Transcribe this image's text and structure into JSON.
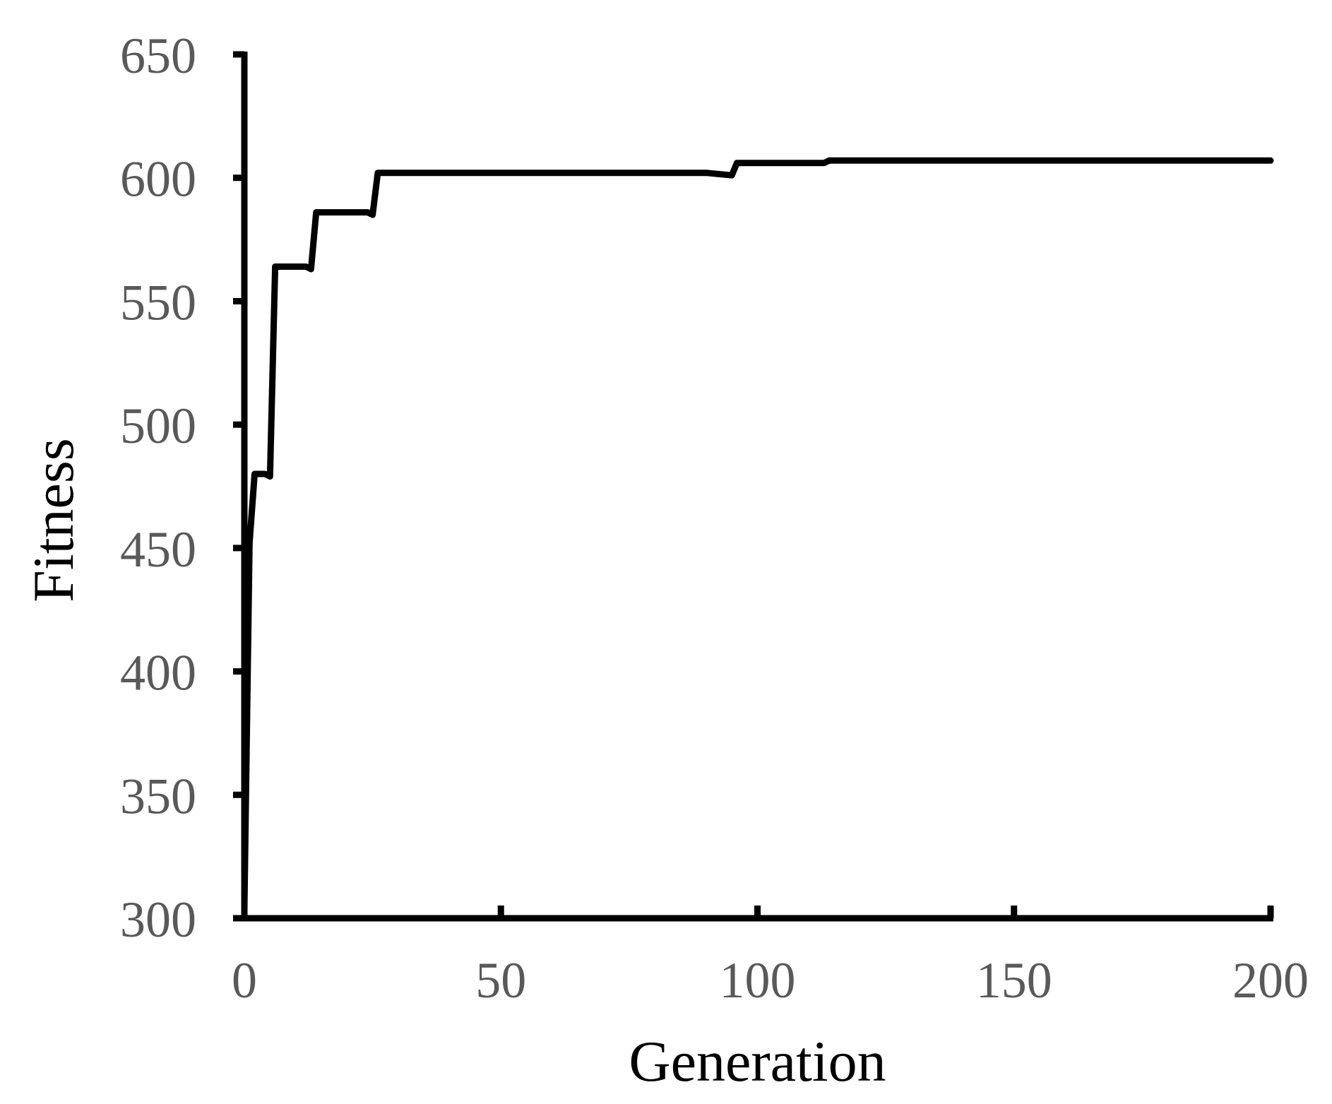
{
  "chart_data": {
    "type": "line",
    "title": "",
    "xlabel": "Generation",
    "ylabel": "Fitness",
    "xlim": [
      0,
      200
    ],
    "ylim": [
      300,
      650
    ],
    "x_ticks": [
      0,
      50,
      100,
      150,
      200
    ],
    "y_ticks": [
      300,
      350,
      400,
      450,
      500,
      550,
      600,
      650
    ],
    "x_tick_labels": [
      "0",
      "50",
      "100",
      "150",
      "200"
    ],
    "y_tick_labels": [
      "300",
      "350",
      "400",
      "450",
      "500",
      "550",
      "600",
      "650"
    ],
    "grid": false,
    "legend": "none",
    "series": [
      {
        "x": [
          0,
          1,
          2,
          3,
          4,
          5,
          6,
          7,
          8,
          9,
          10,
          11,
          12,
          13,
          14,
          15,
          16,
          17,
          18,
          19,
          20,
          21,
          22,
          23,
          24,
          25,
          26,
          27,
          30,
          40,
          50,
          60,
          70,
          80,
          90,
          95,
          96,
          97,
          100,
          110,
          113,
          114,
          115,
          120,
          140,
          160,
          180,
          200
        ],
        "y": [
          304,
          452,
          480,
          480,
          480,
          479,
          564,
          564,
          564,
          564,
          564,
          564,
          564,
          563,
          586,
          586,
          586,
          586,
          586,
          586,
          586,
          586,
          586,
          586,
          586,
          585,
          602,
          602,
          602,
          602,
          602,
          602,
          602,
          602,
          602,
          601,
          606,
          606,
          606,
          606,
          606,
          607,
          607,
          607,
          607,
          607,
          607,
          607
        ]
      }
    ],
    "colors": {
      "line": "#000000",
      "axis": "#000000",
      "tick_label": "#595959",
      "axis_title": "#000000"
    }
  }
}
